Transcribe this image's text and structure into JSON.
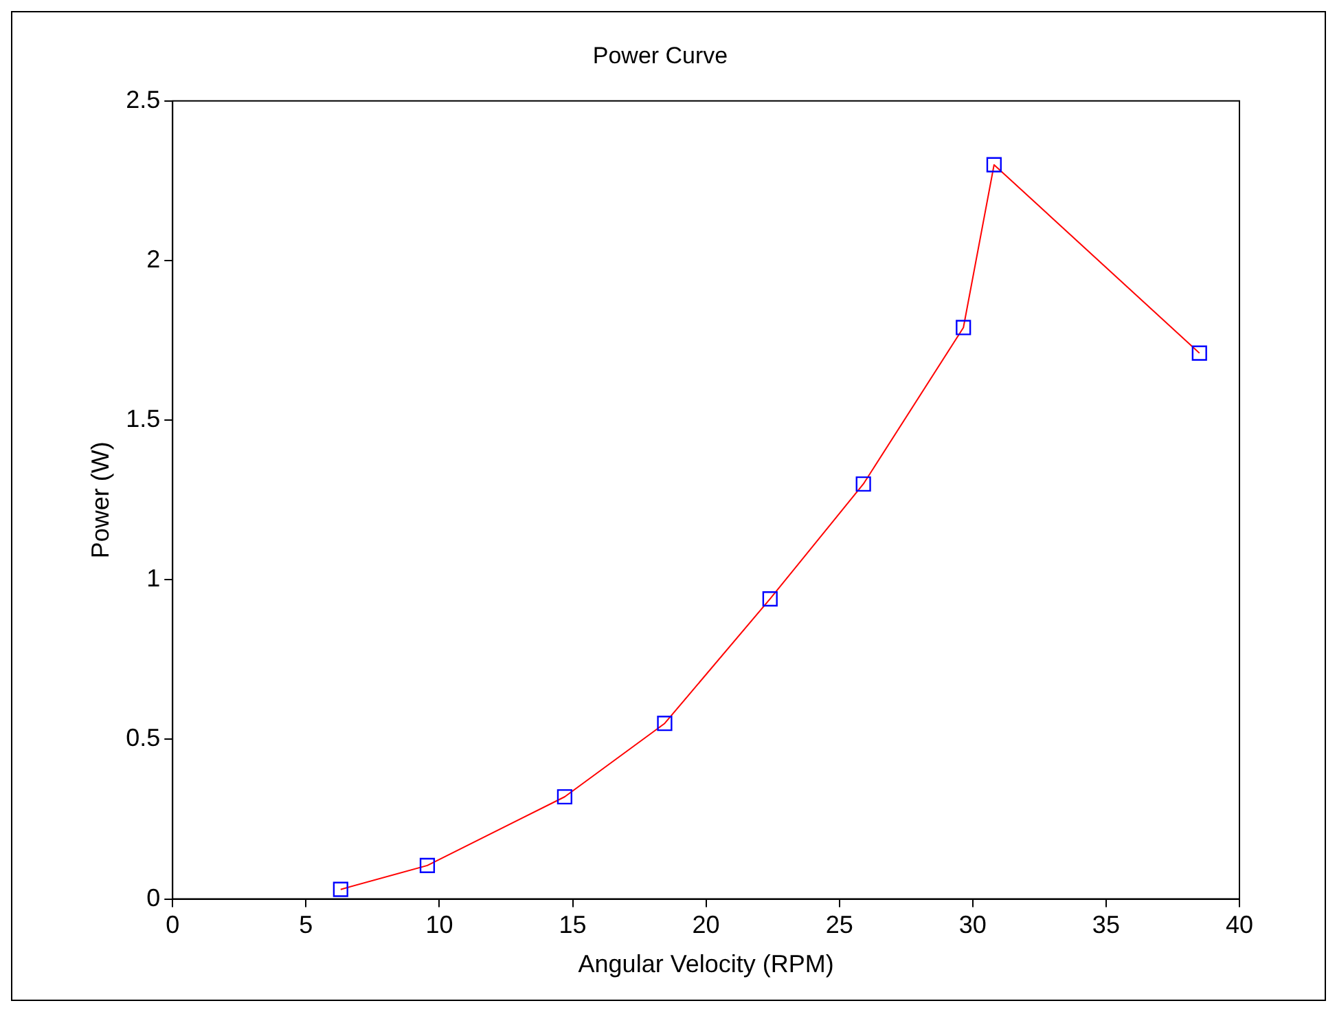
{
  "chart_data": {
    "type": "line",
    "title": "Power Curve",
    "xlabel": "Angular Velocity (RPM)",
    "ylabel": "Power (W)",
    "x": [
      6.3,
      9.55,
      14.7,
      18.45,
      22.4,
      25.9,
      29.65,
      30.8,
      38.5
    ],
    "series": [
      {
        "color": "#ff0000",
        "colors": [
          "#0000ff",
          "#0000ff",
          "#0000ff",
          "#0000ff",
          "#0000ff",
          "#0000ff",
          "#0000ff",
          "#0000ff",
          "#0000ff"
        ],
        "marker": "square",
        "values": [
          0.03,
          0.105,
          0.32,
          0.55,
          0.94,
          1.3,
          1.79,
          2.3,
          1.71
        ]
      }
    ],
    "xlim": [
      0,
      40
    ],
    "xticks": [
      0,
      5,
      10,
      15,
      20,
      25,
      30,
      35,
      40
    ],
    "ylim": [
      0,
      2.5
    ],
    "yticks": [
      0,
      0.5,
      1,
      1.5,
      2,
      2.5
    ],
    "grid": false,
    "legend": false
  }
}
